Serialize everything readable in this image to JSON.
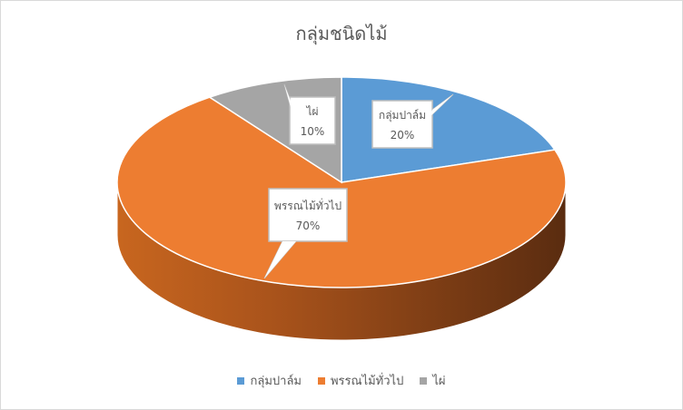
{
  "chart_data": {
    "type": "pie",
    "style": "3d",
    "title": "กลุ่มชนิดไม้",
    "categories": [
      "กลุ่มปาล์ม",
      "พรรณไม้ทั่วไป",
      "ไผ่"
    ],
    "values": [
      20,
      70,
      10
    ],
    "data_labels": [
      "20%",
      "70%",
      "10%"
    ],
    "colors": [
      "#5B9BD5",
      "#ED7D31",
      "#A5A5A5"
    ],
    "legend_placement": "bottom"
  }
}
